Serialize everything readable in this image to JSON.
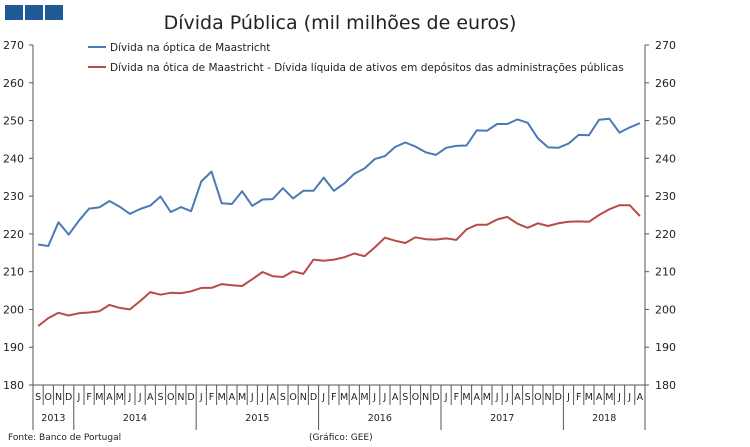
{
  "logo": {
    "squares": 3,
    "color": "#1f5a96"
  },
  "chart_data": {
    "type": "line",
    "title": "Dívida Pública (mil milhões de euros)",
    "ylim": [
      180,
      270
    ],
    "yticks": [
      180,
      190,
      200,
      210,
      220,
      230,
      240,
      250,
      260,
      270
    ],
    "y_axis_sides": [
      "left",
      "right"
    ],
    "grid": false,
    "legend": "top",
    "month_labels": [
      "S",
      "O",
      "N",
      "D",
      "J",
      "F",
      "M",
      "A",
      "M",
      "J",
      "J",
      "A",
      "S",
      "O",
      "N",
      "D",
      "J",
      "F",
      "M",
      "A",
      "M",
      "J",
      "J",
      "A",
      "S",
      "O",
      "N",
      "D",
      "J",
      "F",
      "M",
      "A",
      "M",
      "J",
      "J",
      "A",
      "S",
      "O",
      "N",
      "D",
      "J",
      "F",
      "M",
      "A",
      "M",
      "J",
      "J",
      "A",
      "S",
      "O",
      "N",
      "D",
      "J",
      "F",
      "M",
      "A",
      "M",
      "J",
      "J",
      "A"
    ],
    "years": [
      {
        "label": "2013",
        "months": 4
      },
      {
        "label": "2014",
        "months": 12
      },
      {
        "label": "2015",
        "months": 12
      },
      {
        "label": "2016",
        "months": 12
      },
      {
        "label": "2017",
        "months": 12
      },
      {
        "label": "2018",
        "months": 8
      }
    ],
    "series": [
      {
        "name": "Dívida na óptica de Maastricht",
        "color": "#4a7ab5",
        "values": [
          217.2,
          216.8,
          223.1,
          219.8,
          223.5,
          226.7,
          227.0,
          228.7,
          227.2,
          225.3,
          226.6,
          227.5,
          229.9,
          225.8,
          227.1,
          226.0,
          233.9,
          236.5,
          228.1,
          227.9,
          231.3,
          227.4,
          229.1,
          229.2,
          232.1,
          229.4,
          231.4,
          231.4,
          234.9,
          231.4,
          233.3,
          235.9,
          237.3,
          239.8,
          240.6,
          243.0,
          244.2,
          243.1,
          241.6,
          240.9,
          242.8,
          243.3,
          243.4,
          247.4,
          247.3,
          249.1,
          249.1,
          250.3,
          249.4,
          245.3,
          242.9,
          242.8,
          243.9,
          246.2,
          246.1,
          250.2,
          250.5,
          246.8,
          248.2,
          249.3
        ]
      },
      {
        "name": "Dívida na ótica de Maastricht - Dívida líquida de ativos em depósitos das administrações públicas",
        "color": "#b94a48",
        "values": [
          195.6,
          197.7,
          199.1,
          198.4,
          199.0,
          199.2,
          199.5,
          201.2,
          200.4,
          200.0,
          202.2,
          204.6,
          203.9,
          204.4,
          204.3,
          204.8,
          205.7,
          205.7,
          206.7,
          206.4,
          206.2,
          208.0,
          209.9,
          208.8,
          208.6,
          210.1,
          209.4,
          213.2,
          212.9,
          213.2,
          213.8,
          214.8,
          214.1,
          216.4,
          219.0,
          218.2,
          217.6,
          219.1,
          218.6,
          218.5,
          218.8,
          218.4,
          221.2,
          222.4,
          222.4,
          223.8,
          224.5,
          222.7,
          221.6,
          222.8,
          222.1,
          222.8,
          223.2,
          223.3,
          223.2,
          225.0,
          226.5,
          227.6,
          227.6,
          224.7
        ]
      }
    ]
  },
  "footer": {
    "source": "Fonte: Banco de Portugal",
    "credit": "(Gráfico: GEE)"
  }
}
